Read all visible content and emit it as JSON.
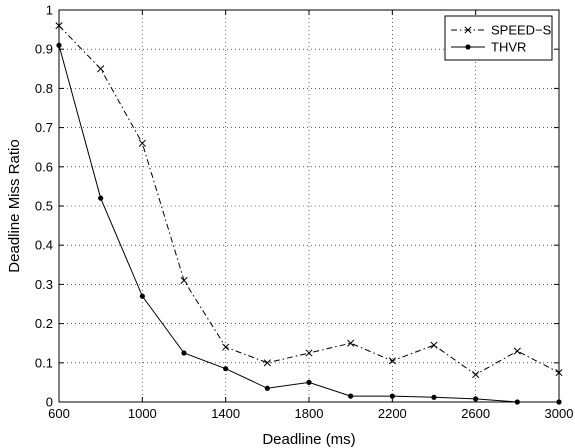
{
  "chart_data": {
    "type": "line",
    "title": "",
    "xlabel": "Deadline (ms)",
    "ylabel": "Deadline Miss Ratio",
    "xlim": [
      600,
      3000
    ],
    "ylim": [
      0,
      1
    ],
    "xticks": [
      600,
      1000,
      1400,
      1800,
      2200,
      2600,
      3000
    ],
    "xtick_labels": [
      "600",
      "1000",
      "1400",
      "1800",
      "2200",
      "2600",
      "3000"
    ],
    "yticks": [
      0,
      0.1,
      0.2,
      0.3,
      0.4,
      0.5,
      0.6,
      0.7,
      0.8,
      0.9,
      1
    ],
    "ytick_labels": [
      "0",
      "0.1",
      "0.2",
      "0.3",
      "0.4",
      "0.5",
      "0.6",
      "0.7",
      "0.8",
      "0.9",
      "1"
    ],
    "grid": true,
    "legend_position": "top-right",
    "x": [
      600,
      800,
      1000,
      1200,
      1400,
      1600,
      1800,
      2000,
      2200,
      2400,
      2600,
      2800,
      3000
    ],
    "series": [
      {
        "name": "SPEED−S",
        "line_style": "dash-dot",
        "marker": "x",
        "color": "#000000",
        "values": [
          0.96,
          0.85,
          0.66,
          0.31,
          0.14,
          0.1,
          0.125,
          0.15,
          0.105,
          0.145,
          0.07,
          0.13,
          0.075
        ]
      },
      {
        "name": "THVR",
        "line_style": "solid",
        "marker": "dot",
        "color": "#000000",
        "values": [
          0.91,
          0.52,
          0.27,
          0.125,
          0.085,
          0.035,
          0.05,
          0.015,
          0.015,
          0.012,
          0.008,
          0.0,
          0.0
        ]
      }
    ]
  }
}
